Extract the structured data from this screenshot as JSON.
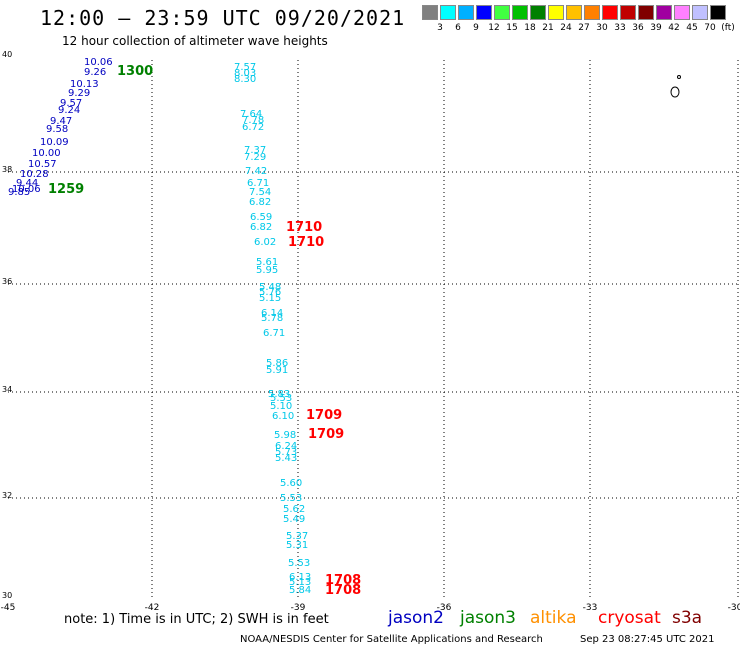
{
  "title": "12:00 – 23:59 UTC 09/20/2021",
  "subtitle": "12 hour collection of altimeter wave heights",
  "legend": {
    "unit": "(ft)",
    "colors": [
      "#808080",
      "#00ffff",
      "#00b0ff",
      "#0000ff",
      "#40ff40",
      "#00c000",
      "#008000",
      "#ffff00",
      "#ffc000",
      "#ff8000",
      "#ff0000",
      "#c00000",
      "#800000",
      "#a000a0",
      "#ff80ff",
      "#c0c0ff",
      "#000000"
    ],
    "labels": [
      "3",
      "6",
      "9",
      "12",
      "15",
      "18",
      "21",
      "24",
      "27",
      "30",
      "33",
      "36",
      "39",
      "42",
      "45",
      "70"
    ]
  },
  "axes": {
    "lat_ticks": [
      "40",
      "38",
      "36",
      "34",
      "32",
      "30"
    ],
    "lon_ticks": [
      "-45",
      "-42",
      "-39",
      "-36",
      "-33",
      "-30"
    ]
  },
  "track_labels": [
    {
      "text": "1300",
      "color": "#008000"
    },
    {
      "text": "1259",
      "color": "#008000"
    },
    {
      "text": "1710",
      "color": "#ff0000"
    },
    {
      "text": "1710",
      "color": "#ff0000"
    },
    {
      "text": "1709",
      "color": "#ff0000"
    },
    {
      "text": "1709",
      "color": "#ff0000"
    },
    {
      "text": "1708",
      "color": "#ff0000"
    },
    {
      "text": "1708",
      "color": "#ff0000"
    }
  ],
  "jason2_values": [
    "10.06",
    "9.26",
    "10.13",
    "9.29",
    "9.57",
    "9.24",
    "9.47",
    "9.58",
    "10.09",
    "10.00",
    "10.57",
    "10.28",
    "9.44",
    "10.06",
    "9.85"
  ],
  "cyan_values": [
    "7.57",
    "8.03",
    "8.30",
    "7.64",
    "7.78",
    "6.72",
    "7.37",
    "7.29",
    "7.42",
    "6.71",
    "7.54",
    "6.82",
    "6.59",
    "6.82",
    "6.02",
    "5.61",
    "5.95",
    "5.48",
    "5.76",
    "5.15",
    "6.14",
    "5.78",
    "6.71",
    "5.86",
    "5.91",
    "5.83",
    "5.53",
    "5.10",
    "6.10",
    "5.98",
    "6.24",
    "5.73",
    "5.43",
    "5.60",
    "5.53",
    "5.62",
    "5.49",
    "5.37",
    "5.31",
    "5.53",
    "6.13",
    "5.13",
    "5.84"
  ],
  "note": "note: 1) Time is in UTC; 2) SWH is in feet",
  "satellites": [
    {
      "name": "jason2",
      "color": "#0000c0"
    },
    {
      "name": "jason3",
      "color": "#008000"
    },
    {
      "name": "altika",
      "color": "#ff9000"
    },
    {
      "name": "cryosat",
      "color": "#ff0000"
    },
    {
      "name": "s3a",
      "color": "#800000"
    }
  ],
  "footer": "NOAA/NESDIS Center for Satellite Applications and Research",
  "timestamp": "Sep 23 08:27:45 UTC 2021"
}
